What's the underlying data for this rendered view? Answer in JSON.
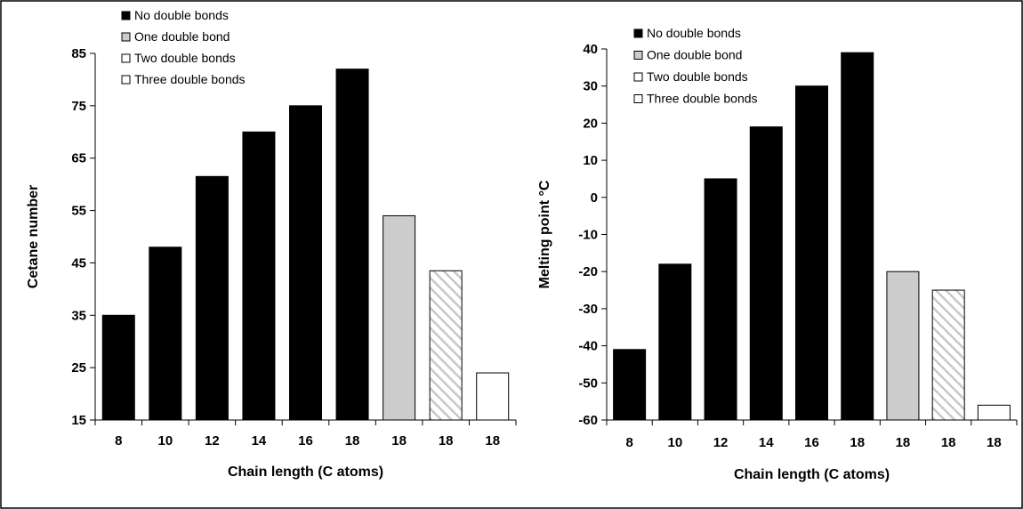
{
  "chart_data": [
    {
      "type": "bar",
      "categories": [
        "8",
        "10",
        "12",
        "14",
        "16",
        "18",
        "18",
        "18",
        "18"
      ],
      "series": [
        {
          "name": "No double bonds",
          "color": "#000000",
          "pattern": "solid",
          "values": [
            35,
            48,
            61.5,
            70,
            75,
            82,
            null,
            null,
            null
          ]
        },
        {
          "name": "One double bond",
          "color": "#cccccc",
          "pattern": "solid",
          "values": [
            null,
            null,
            null,
            null,
            null,
            null,
            54,
            null,
            null
          ]
        },
        {
          "name": "Two double bonds",
          "color": "#ffffff",
          "pattern": "diagonal-hatch",
          "hatch_color": "#c8c8c8",
          "values": [
            null,
            null,
            null,
            null,
            null,
            null,
            null,
            43.5,
            null
          ]
        },
        {
          "name": "Three double bonds",
          "color": "#ffffff",
          "pattern": "solid",
          "values": [
            null,
            null,
            null,
            null,
            null,
            null,
            null,
            null,
            24
          ]
        }
      ],
      "xlabel": "Chain length (C atoms)",
      "ylabel": "Cetane number",
      "ylim": [
        15,
        85
      ],
      "yticks": [
        15,
        25,
        35,
        45,
        55,
        65,
        75,
        85
      ],
      "grid": false,
      "legend": "top-left"
    },
    {
      "type": "bar",
      "categories": [
        "8",
        "10",
        "12",
        "14",
        "16",
        "18",
        "18",
        "18",
        "18"
      ],
      "series": [
        {
          "name": "No double bonds",
          "color": "#000000",
          "pattern": "solid",
          "values": [
            -41,
            -18,
            5,
            19,
            30,
            39,
            null,
            null,
            null
          ]
        },
        {
          "name": "One double bond",
          "color": "#cccccc",
          "pattern": "solid",
          "values": [
            null,
            null,
            null,
            null,
            null,
            null,
            -20,
            null,
            null
          ]
        },
        {
          "name": "Two double bonds",
          "color": "#ffffff",
          "pattern": "diagonal-hatch",
          "hatch_color": "#c8c8c8",
          "values": [
            null,
            null,
            null,
            null,
            null,
            null,
            null,
            -25,
            null
          ]
        },
        {
          "name": "Three double bonds",
          "color": "#ffffff",
          "pattern": "solid",
          "values": [
            null,
            null,
            null,
            null,
            null,
            null,
            null,
            null,
            -56
          ]
        }
      ],
      "xlabel": "Chain length (C atoms)",
      "ylabel": "Melting point °C",
      "ylim": [
        -60,
        40
      ],
      "yticks": [
        -60,
        -50,
        -40,
        -30,
        -20,
        -10,
        0,
        10,
        20,
        30,
        40
      ],
      "grid": false,
      "legend": "top-left"
    }
  ]
}
